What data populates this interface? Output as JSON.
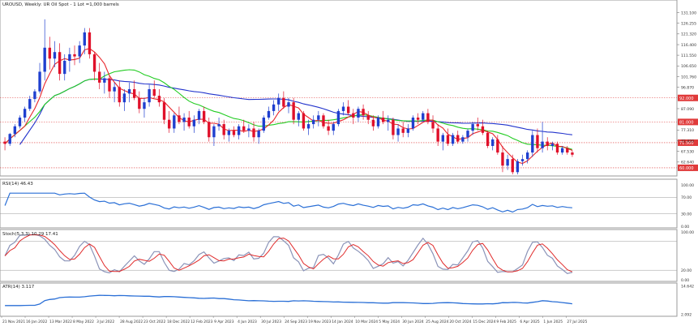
{
  "chart_data": {
    "type": "candlestick",
    "title": "UROUSD, Weekly: UR Oil Spot - 1 Lot =1,000 barrels",
    "colors": {
      "up": "#1f3fcf",
      "down": "#e0102a",
      "ma_fast": "#e8262b",
      "ma_mid": "#22cc22",
      "ma_slow": "#2233cc",
      "rsi": "#2a6fd6",
      "stoch_main": "#8a93b8",
      "stoch_signal": "#e02a2a",
      "atr": "#2a6fd6",
      "level_line": "#e03a3a",
      "current_tag": "#e03a3a"
    },
    "main_panel": {
      "y_ticks": [
        "131.100",
        "126.255",
        "121.320",
        "116.400",
        "111.550",
        "106.650",
        "101.760",
        "96.870",
        "87.090",
        "77.310",
        "72.420",
        "67.530",
        "62.640"
      ],
      "ylim": [
        57.0,
        133.5
      ],
      "price_labels": [
        {
          "label": "92.000",
          "value": 92.0
        },
        {
          "label": "81.000",
          "value": 81.0
        },
        {
          "label": "71.500",
          "value": 71.5
        },
        {
          "label": "60.000",
          "value": 60.0
        }
      ],
      "candles": [
        [
          72.0,
          74.0,
          68.0,
          71.0
        ],
        [
          71.0,
          76.0,
          70.0,
          75.5
        ],
        [
          75.5,
          80.0,
          74.0,
          79.0
        ],
        [
          79.0,
          84.0,
          78.0,
          83.0
        ],
        [
          83.0,
          88.0,
          81.0,
          87.0
        ],
        [
          87.0,
          93.0,
          86.0,
          91.5
        ],
        [
          91.5,
          96.0,
          90.0,
          95.0
        ],
        [
          95.0,
          108.0,
          94.0,
          104.0
        ],
        [
          104.0,
          128.0,
          100.0,
          115.0
        ],
        [
          115.0,
          120.0,
          105.0,
          110.0
        ],
        [
          110.0,
          118.0,
          106.0,
          113.0
        ],
        [
          113.0,
          117.0,
          100.0,
          103.0
        ],
        [
          103.0,
          112.0,
          100.0,
          109.0
        ],
        [
          109.0,
          115.0,
          104.0,
          112.0
        ],
        [
          112.0,
          116.0,
          107.0,
          111.0
        ],
        [
          111.0,
          118.0,
          108.0,
          116.0
        ],
        [
          116.0,
          124.0,
          112.0,
          122.0
        ],
        [
          122.0,
          124.0,
          110.0,
          112.0
        ],
        [
          112.0,
          113.0,
          100.0,
          104.0
        ],
        [
          104.0,
          108.0,
          96.0,
          99.0
        ],
        [
          99.0,
          104.0,
          94.0,
          101.0
        ],
        [
          101.0,
          102.0,
          92.0,
          95.0
        ],
        [
          95.0,
          99.0,
          90.0,
          97.0
        ],
        [
          97.0,
          100.0,
          88.0,
          90.0
        ],
        [
          90.0,
          96.0,
          86.0,
          94.0
        ],
        [
          94.0,
          99.0,
          90.0,
          96.0
        ],
        [
          96.0,
          100.0,
          91.0,
          92.0
        ],
        [
          92.0,
          95.0,
          85.0,
          87.0
        ],
        [
          87.0,
          92.0,
          83.0,
          90.0
        ],
        [
          90.0,
          98.0,
          88.0,
          96.0
        ],
        [
          96.0,
          100.0,
          92.0,
          93.0
        ],
        [
          93.0,
          96.0,
          88.0,
          90.0
        ],
        [
          90.0,
          92.0,
          80.0,
          82.0
        ],
        [
          82.0,
          86.0,
          76.0,
          78.0
        ],
        [
          78.0,
          85.0,
          76.0,
          84.0
        ],
        [
          84.0,
          88.0,
          80.0,
          81.0
        ],
        [
          81.0,
          85.0,
          77.0,
          83.0
        ],
        [
          83.0,
          86.0,
          78.0,
          79.0
        ],
        [
          79.0,
          84.0,
          76.0,
          82.0
        ],
        [
          82.0,
          87.0,
          80.0,
          86.0
        ],
        [
          86.0,
          88.0,
          80.0,
          81.0
        ],
        [
          81.0,
          83.0,
          72.0,
          74.0
        ],
        [
          74.0,
          80.0,
          70.0,
          79.0
        ],
        [
          79.0,
          83.0,
          77.0,
          80.0
        ],
        [
          80.0,
          82.0,
          73.0,
          75.0
        ],
        [
          75.0,
          78.0,
          72.0,
          77.0
        ],
        [
          77.0,
          79.0,
          74.0,
          75.0
        ],
        [
          75.0,
          80.0,
          73.0,
          79.0
        ],
        [
          79.0,
          82.0,
          76.0,
          77.0
        ],
        [
          77.0,
          80.0,
          74.0,
          78.0
        ],
        [
          78.0,
          81.0,
          72.0,
          74.0
        ],
        [
          74.0,
          78.0,
          71.0,
          77.0
        ],
        [
          77.0,
          84.0,
          76.0,
          83.0
        ],
        [
          83.0,
          88.0,
          82.0,
          86.0
        ],
        [
          86.0,
          91.0,
          84.0,
          89.0
        ],
        [
          89.0,
          94.0,
          86.0,
          92.0
        ],
        [
          92.0,
          95.0,
          87.0,
          88.0
        ],
        [
          88.0,
          92.0,
          85.0,
          90.0
        ],
        [
          90.0,
          92.0,
          80.0,
          82.0
        ],
        [
          82.0,
          86.0,
          79.0,
          85.0
        ],
        [
          85.0,
          86.0,
          77.0,
          78.0
        ],
        [
          78.0,
          82.0,
          75.0,
          80.0
        ],
        [
          80.0,
          84.0,
          78.0,
          82.0
        ],
        [
          82.0,
          86.0,
          79.0,
          84.0
        ],
        [
          84.0,
          85.0,
          78.0,
          79.0
        ],
        [
          79.0,
          82.0,
          75.0,
          77.0
        ],
        [
          77.0,
          81.0,
          75.0,
          80.0
        ],
        [
          80.0,
          87.0,
          79.0,
          86.0
        ],
        [
          86.0,
          90.0,
          84.0,
          88.0
        ],
        [
          88.0,
          91.0,
          84.0,
          85.0
        ],
        [
          85.0,
          87.0,
          80.0,
          83.0
        ],
        [
          83.0,
          88.0,
          81.0,
          87.0
        ],
        [
          87.0,
          89.0,
          82.0,
          84.0
        ],
        [
          84.0,
          86.0,
          80.0,
          82.0
        ],
        [
          82.0,
          84.0,
          77.0,
          79.0
        ],
        [
          79.0,
          84.0,
          78.0,
          83.0
        ],
        [
          83.0,
          86.0,
          80.0,
          81.0
        ],
        [
          81.0,
          84.0,
          77.0,
          82.0
        ],
        [
          82.0,
          83.0,
          73.0,
          75.0
        ],
        [
          75.0,
          80.0,
          72.0,
          78.0
        ],
        [
          78.0,
          81.0,
          74.0,
          76.0
        ],
        [
          76.0,
          80.0,
          74.0,
          78.0
        ],
        [
          78.0,
          84.0,
          77.0,
          83.0
        ],
        [
          83.0,
          85.0,
          80.0,
          82.0
        ],
        [
          82.0,
          86.0,
          81.0,
          85.0
        ],
        [
          85.0,
          87.0,
          80.0,
          81.0
        ],
        [
          81.0,
          84.0,
          76.0,
          78.0
        ],
        [
          78.0,
          80.0,
          70.0,
          72.0
        ],
        [
          72.0,
          76.0,
          68.0,
          75.0
        ],
        [
          75.0,
          78.0,
          70.0,
          71.0
        ],
        [
          71.0,
          76.0,
          70.0,
          75.0
        ],
        [
          75.0,
          77.0,
          71.0,
          72.0
        ],
        [
          72.0,
          75.0,
          71.0,
          74.0
        ],
        [
          74.0,
          78.0,
          72.0,
          77.0
        ],
        [
          77.0,
          81.0,
          75.0,
          80.0
        ],
        [
          80.0,
          83.0,
          77.0,
          79.0
        ],
        [
          79.0,
          82.0,
          75.0,
          76.0
        ],
        [
          76.0,
          77.0,
          69.0,
          70.0
        ],
        [
          70.0,
          74.0,
          68.0,
          73.0
        ],
        [
          73.0,
          75.0,
          66.0,
          67.0
        ],
        [
          67.0,
          70.0,
          58.0,
          61.0
        ],
        [
          61.0,
          66.0,
          59.0,
          64.0
        ],
        [
          64.0,
          66.0,
          57.0,
          58.0
        ],
        [
          58.0,
          64.0,
          57.0,
          63.0
        ],
        [
          63.0,
          66.0,
          61.0,
          64.0
        ],
        [
          64.0,
          68.0,
          62.0,
          67.0
        ],
        [
          67.0,
          77.0,
          65.0,
          75.0
        ],
        [
          75.0,
          78.0,
          67.0,
          69.0
        ],
        [
          69.0,
          81.0,
          67.0,
          72.0
        ],
        [
          72.0,
          74.0,
          68.0,
          70.0
        ],
        [
          70.0,
          72.0,
          68.0,
          71.0
        ],
        [
          71.0,
          72.0,
          66.0,
          67.0
        ],
        [
          67.0,
          70.0,
          66.0,
          69.0
        ],
        [
          69.0,
          70.0,
          66.0,
          67.0
        ],
        [
          67.0,
          68.0,
          65.0,
          66.0
        ]
      ]
    },
    "rsi_panel": {
      "label": "RSI(14) 46.43",
      "y_ticks": [
        "100.00",
        "70.00",
        "30.00",
        "0.00"
      ],
      "ylim": [
        0,
        100
      ]
    },
    "stoch_panel": {
      "label": "Stoch(5,3,3) 10.29 17.41",
      "y_ticks": [
        "100.00",
        "20.00",
        "0.00"
      ],
      "ylim": [
        0,
        100
      ]
    },
    "atr_panel": {
      "label": "ATR(14) 3.117",
      "y_ticks": [
        "14.642",
        "2.092"
      ],
      "ylim": [
        2.0,
        14.9
      ]
    },
    "x_labels": [
      "21 Nov 2021",
      "16 Jan 2022",
      "13 Mar 2022",
      "8 May 2022",
      "3 Jul 2022",
      "28 Aug 2022",
      "23 Oct 2022",
      "18 Dec 2022",
      "12 Feb 2023",
      "9 Apr 2023",
      "4 Jun 2023",
      "30 Jul 2023",
      "24 Sep 2023",
      "19 Nov 2023",
      "14 Jan 2024",
      "10 Mar 2024",
      "5 May 2024",
      "30 Jun 2024",
      "25 Aug 2024",
      "20 Oct 2024",
      "15 Dec 2024",
      "9 Feb 2025",
      "6 Apr 2025",
      "1 Jun 2025",
      "27 Jul 2025"
    ]
  }
}
